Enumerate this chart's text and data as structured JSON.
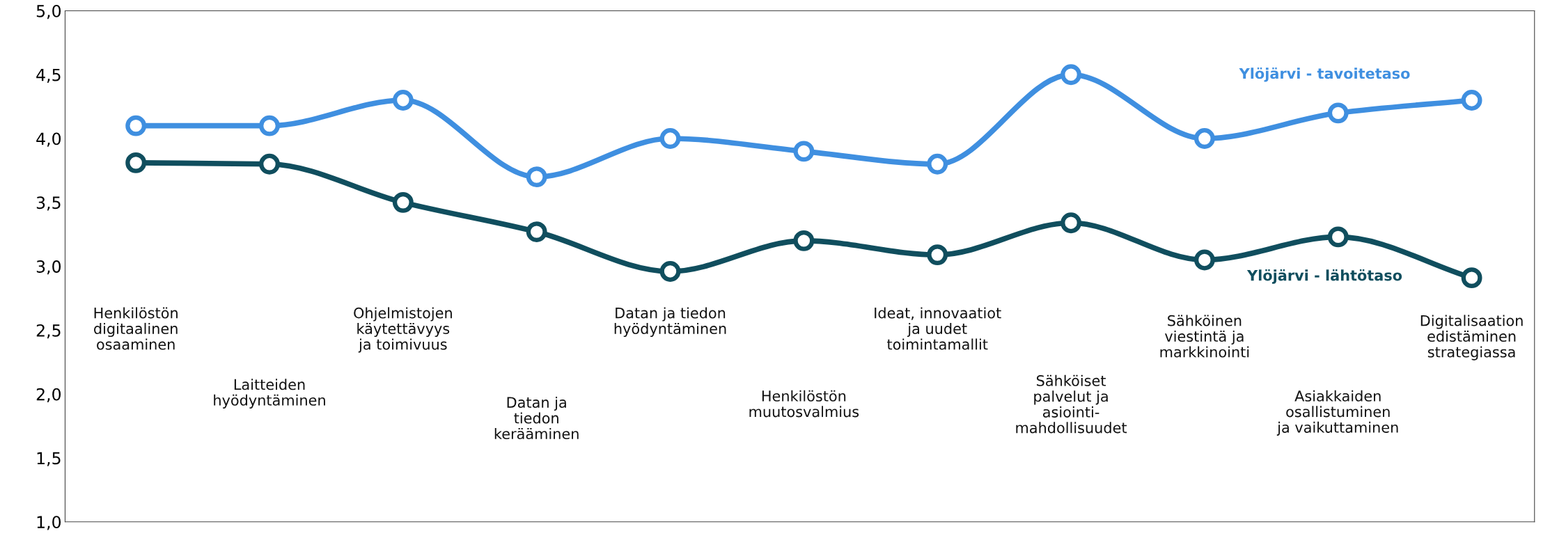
{
  "chart_data": {
    "type": "line",
    "categories": [
      "Henkilöstön\ndigitaalinen\nosaaminen",
      "Laitteiden\nhyödyntäminen",
      "Ohjelmistojen\nkäytettävyys\nja toimivuus",
      "Datan ja\ntiedon\nkerääminen",
      "Datan ja tiedon\nhyödyntäminen",
      "Henkilöstön\nmuutosvalmius",
      "Ideat, innovaatiot\nja uudet\ntoimintamallit",
      "Sähköiset\npalvelut ja\nasiointi-\nmahdollisuudet",
      "Sähköinen\nviestintä ja\nmarkkinointi",
      "Asiakkaiden\nosallistuminen\nja vaikuttaminen",
      "Digitalisaation\nedistäminen\nstrategiassa"
    ],
    "series": [
      {
        "name": "Ylöjärvi - tavoitetaso",
        "color": "#3f8fe0",
        "values": [
          4.1,
          4.1,
          4.3,
          3.7,
          4.0,
          3.9,
          3.8,
          4.5,
          4.0,
          4.2,
          4.3
        ]
      },
      {
        "name": "Ylöjärvi - lähtötaso",
        "color": "#104e5e",
        "values": [
          3.81,
          3.8,
          3.5,
          3.27,
          2.96,
          3.2,
          3.09,
          3.34,
          3.05,
          3.23,
          2.91
        ]
      }
    ],
    "ylim": [
      1.0,
      5.0
    ],
    "yticks": [
      {
        "value": 1.0,
        "label": "1,0"
      },
      {
        "value": 1.5,
        "label": "1,5"
      },
      {
        "value": 2.0,
        "label": "2,0"
      },
      {
        "value": 2.5,
        "label": "2,5"
      },
      {
        "value": 3.0,
        "label": "3,0"
      },
      {
        "value": 3.5,
        "label": "3,5"
      },
      {
        "value": 4.0,
        "label": "4,0"
      },
      {
        "value": 4.5,
        "label": "4,5"
      },
      {
        "value": 5.0,
        "label": "5,0"
      }
    ],
    "marker": "circle",
    "line_style": "solid",
    "grid": false,
    "legend": false
  }
}
